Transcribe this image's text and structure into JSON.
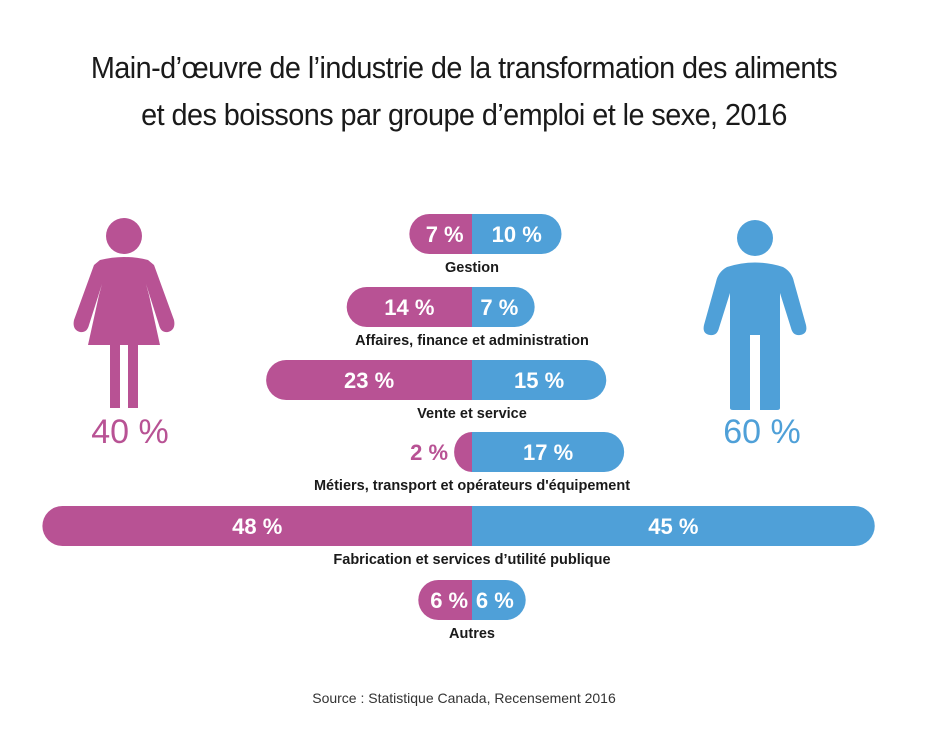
{
  "title_lines": [
    "Main-d’œuvre de l’industrie de la transformation des aliments",
    "et des boissons par groupe d’emploi et le sexe, 2016"
  ],
  "source": "Source : Statistique Canada, Recensement 2016",
  "colors": {
    "women": "#B85294",
    "men": "#4FA0D8",
    "text": "#1a1a1a",
    "label_on_bar": "#ffffff"
  },
  "gender": {
    "women": {
      "icon": "woman-icon",
      "value": 40,
      "label": "40 %"
    },
    "men": {
      "icon": "man-icon",
      "value": 60,
      "label": "60 %"
    }
  },
  "chart_data": {
    "type": "bar",
    "orientation": "horizontal-diverging",
    "title": "Main-d’œuvre de l’industrie de la transformation des aliments et des boissons par groupe d’emploi et le sexe, 2016",
    "unit": "%",
    "categories": [
      "Gestion",
      "Affaires, finance et administration",
      "Vente et service",
      "Métiers, transport et opérateurs d'équipement",
      "Fabrication et services d’utilité publique",
      "Autres"
    ],
    "series": [
      {
        "name": "Femmes",
        "side": "left",
        "values": [
          7,
          14,
          23,
          2,
          48,
          6
        ],
        "labels": [
          "7 %",
          "14 %",
          "23 %",
          "2 %",
          "48 %",
          "6 %"
        ]
      },
      {
        "name": "Hommes",
        "side": "right",
        "values": [
          10,
          7,
          15,
          17,
          45,
          6
        ],
        "labels": [
          "10 %",
          "7 %",
          "15 %",
          "17 %",
          "45 %",
          "6 %"
        ]
      }
    ],
    "totals": {
      "Femmes": 40,
      "Hommes": 60
    },
    "xlim": [
      -48,
      48
    ],
    "grid": false,
    "legend": "icons-left-right"
  }
}
